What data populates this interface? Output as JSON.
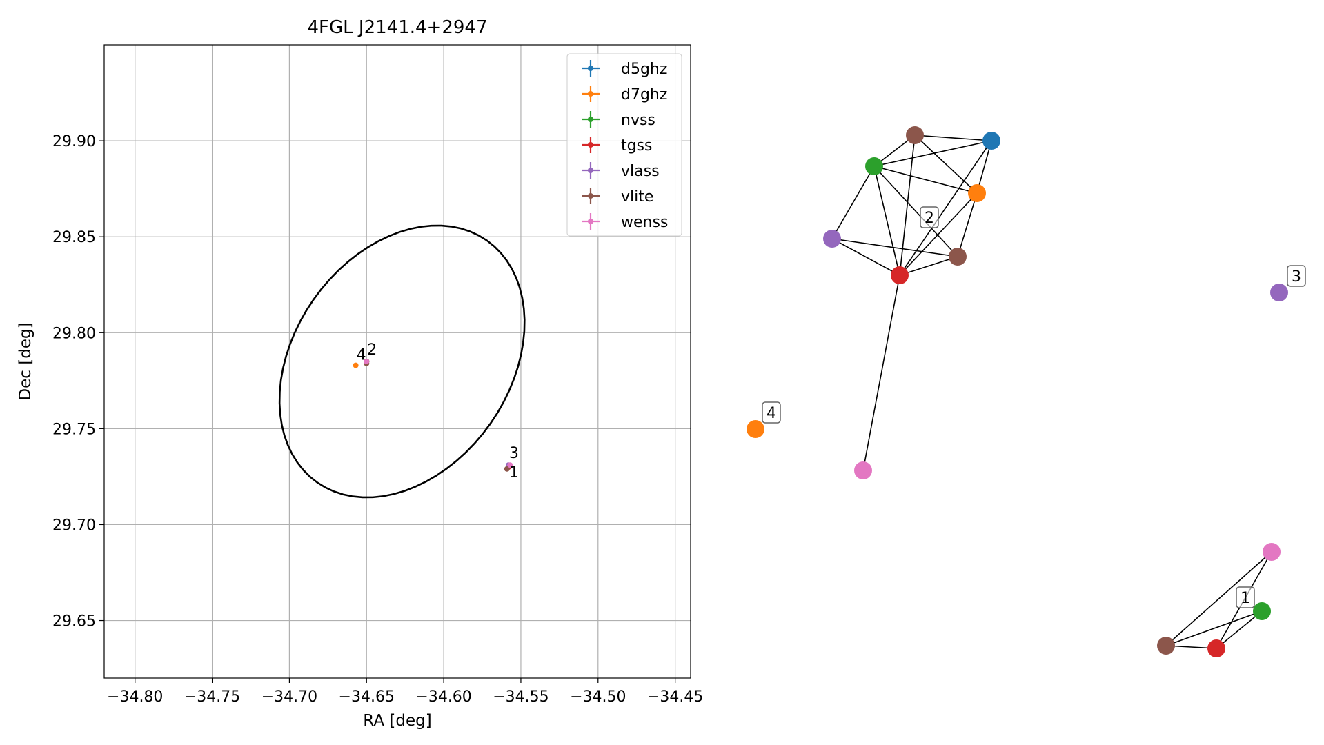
{
  "chart_data": [
    {
      "type": "scatter",
      "title": "4FGL J2141.4+2947",
      "xlabel": "RA [deg]",
      "ylabel": "Dec [deg]",
      "xlim": [
        -34.82,
        -34.44
      ],
      "ylim": [
        29.62,
        29.95
      ],
      "xticks": [
        -34.8,
        -34.75,
        -34.7,
        -34.65,
        -34.6,
        -34.55,
        -34.5,
        -34.45
      ],
      "xtick_labels": [
        "−34.80",
        "−34.75",
        "−34.70",
        "−34.65",
        "−34.60",
        "−34.55",
        "−34.50",
        "−34.45"
      ],
      "yticks": [
        29.65,
        29.7,
        29.75,
        29.8,
        29.85,
        29.9
      ],
      "ytick_labels": [
        "29.65",
        "29.70",
        "29.75",
        "29.80",
        "29.85",
        "29.90"
      ],
      "grid": true,
      "legend_position": "top-right",
      "series": [
        {
          "name": "d5ghz",
          "color": "#1f77b4",
          "points": [
            {
              "x": -34.65,
              "y": 29.785
            }
          ]
        },
        {
          "name": "d7ghz",
          "color": "#ff7f0e",
          "points": [
            {
              "x": -34.657,
              "y": 29.783
            },
            {
              "x": -34.65,
              "y": 29.785
            }
          ]
        },
        {
          "name": "nvss",
          "color": "#2ca02c",
          "points": [
            {
              "x": -34.65,
              "y": 29.785
            },
            {
              "x": -34.558,
              "y": 29.73
            }
          ]
        },
        {
          "name": "tgss",
          "color": "#d62728",
          "points": [
            {
              "x": -34.65,
              "y": 29.785
            },
            {
              "x": -34.558,
              "y": 29.73
            }
          ]
        },
        {
          "name": "vlass",
          "color": "#9467bd",
          "points": [
            {
              "x": -34.65,
              "y": 29.785
            },
            {
              "x": -34.558,
              "y": 29.731
            }
          ]
        },
        {
          "name": "vlite",
          "color": "#8c564b",
          "points": [
            {
              "x": -34.65,
              "y": 29.785
            },
            {
              "x": -34.65,
              "y": 29.784
            },
            {
              "x": -34.559,
              "y": 29.729
            }
          ]
        },
        {
          "name": "wenss",
          "color": "#e377c2",
          "points": [
            {
              "x": -34.65,
              "y": 29.785
            },
            {
              "x": -34.557,
              "y": 29.731
            }
          ]
        }
      ],
      "ellipse": {
        "center_x": -34.627,
        "center_y": 29.785,
        "ra_half_width": 0.07,
        "dec_half_height": 0.077,
        "color": "#000000"
      },
      "annotations": [
        {
          "text": "4",
          "x": -34.657,
          "y": 29.783
        },
        {
          "text": "2",
          "x": -34.65,
          "y": 29.785
        },
        {
          "text": "3",
          "x": -34.558,
          "y": 29.731
        },
        {
          "text": "1",
          "x": -34.558,
          "y": 29.729
        }
      ]
    },
    {
      "type": "network",
      "nodes": [
        {
          "id": "n_brown_top",
          "color": "#8c564b"
        },
        {
          "id": "n_blue",
          "color": "#1f77b4"
        },
        {
          "id": "n_green",
          "color": "#2ca02c"
        },
        {
          "id": "n_orange",
          "color": "#ff7f0e"
        },
        {
          "id": "n_purple",
          "color": "#9467bd"
        },
        {
          "id": "n_brown_mid",
          "color": "#8c564b"
        },
        {
          "id": "n_red",
          "color": "#d62728"
        },
        {
          "id": "n_pink",
          "color": "#e377c2"
        },
        {
          "id": "n_orange_4",
          "color": "#ff7f0e"
        },
        {
          "id": "n_purple_3",
          "color": "#9467bd"
        },
        {
          "id": "n_pink_1",
          "color": "#e377c2"
        },
        {
          "id": "n_green_1",
          "color": "#2ca02c"
        },
        {
          "id": "n_brown_1",
          "color": "#8c564b"
        },
        {
          "id": "n_red_1",
          "color": "#d62728"
        }
      ],
      "edges": [
        [
          "n_brown_top",
          "n_blue"
        ],
        [
          "n_brown_top",
          "n_green"
        ],
        [
          "n_brown_top",
          "n_orange"
        ],
        [
          "n_brown_top",
          "n_red"
        ],
        [
          "n_green",
          "n_blue"
        ],
        [
          "n_green",
          "n_orange"
        ],
        [
          "n_green",
          "n_purple"
        ],
        [
          "n_green",
          "n_brown_mid"
        ],
        [
          "n_green",
          "n_red"
        ],
        [
          "n_blue",
          "n_orange"
        ],
        [
          "n_blue",
          "n_red"
        ],
        [
          "n_orange",
          "n_brown_mid"
        ],
        [
          "n_orange",
          "n_red"
        ],
        [
          "n_purple",
          "n_brown_mid"
        ],
        [
          "n_purple",
          "n_red"
        ],
        [
          "n_red",
          "n_brown_mid"
        ],
        [
          "n_red",
          "n_pink"
        ],
        [
          "n_brown_1",
          "n_pink_1"
        ],
        [
          "n_brown_1",
          "n_green_1"
        ],
        [
          "n_brown_1",
          "n_red_1"
        ],
        [
          "n_red_1",
          "n_green_1"
        ],
        [
          "n_red_1",
          "n_pink_1"
        ]
      ],
      "cluster_labels": [
        "2",
        "3",
        "4",
        "1"
      ]
    }
  ]
}
